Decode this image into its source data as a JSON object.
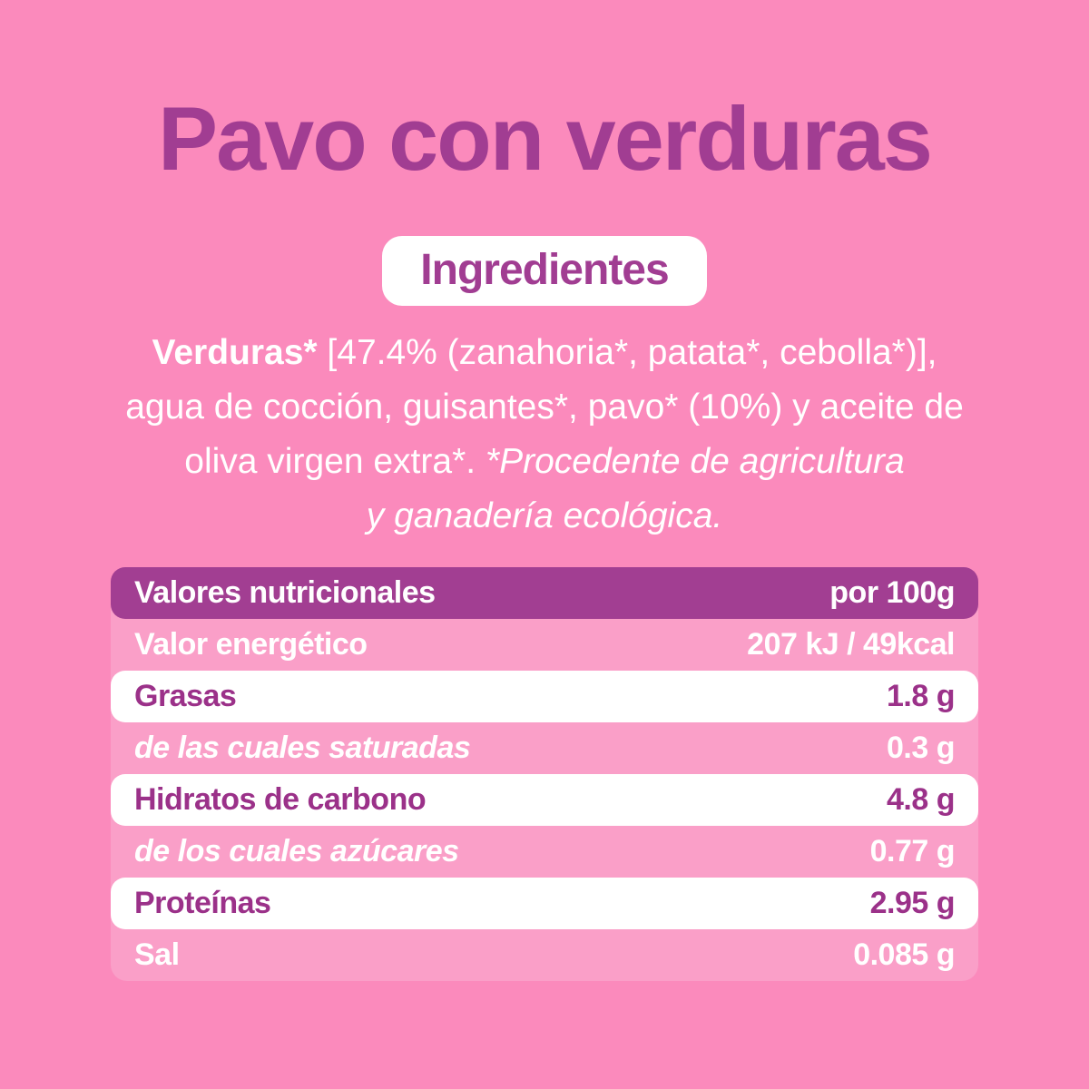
{
  "page": {
    "title": "Pavo con verduras",
    "badge": "Ingredientes"
  },
  "ingredients": {
    "line1_bold": "Verduras*",
    "line1_rest": " [47.4% (zanahoria*, patata*, cebolla*)],",
    "line2": "agua de cocción, guisantes*, pavo* (10%) y aceite de",
    "line3_regular": "oliva virgen extra*. ",
    "line3_italic": "*Procedente de agricultura",
    "line4_italic": "y ganadería ecológica."
  },
  "nutrition_table": {
    "header": {
      "label": "Valores nutricionales",
      "value": "por 100g"
    },
    "rows": [
      {
        "label": "Valor energético",
        "value": "207 kJ / 49kcal"
      },
      {
        "label": "Grasas",
        "value": "1.8 g"
      },
      {
        "label": "de las cuales saturadas",
        "value": "0.3 g"
      },
      {
        "label": "Hidratos de carbono",
        "value": "4.8 g"
      },
      {
        "label": "de los cuales azúcares",
        "value": "0.77 g"
      },
      {
        "label": "Proteínas",
        "value": "2.95 g"
      },
      {
        "label": "Sal",
        "value": "0.085 g"
      }
    ]
  },
  "colors": {
    "background_pink": "#FB8ABC",
    "table_row_pink": "#FA9FC8",
    "header_purple": "#A23E92",
    "text_purple": "#9B3189",
    "title_purple": "#A13D92",
    "white": "#FFFFFF"
  }
}
